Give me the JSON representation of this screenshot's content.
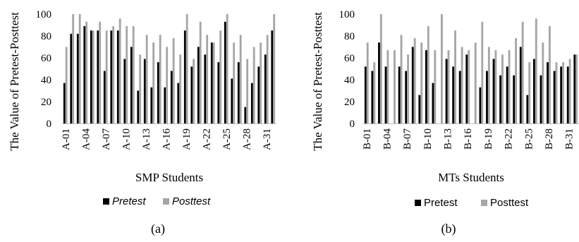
{
  "figure": {
    "panels": [
      "(a)",
      "(b)"
    ]
  },
  "colors": {
    "pretest": "#000000",
    "posttest": "#a6a6a6",
    "axis": "#bfbfbf"
  },
  "chart_data": [
    {
      "type": "bar",
      "title": "",
      "xlabel": "SMP Students",
      "ylabel": "The Value of Pretest-Posttest",
      "ylim": [
        0,
        100
      ],
      "yticks": [
        "0",
        "20",
        "40",
        "60",
        "80",
        "100"
      ],
      "grid": false,
      "legend_position": "bottom",
      "categories": [
        "A-01",
        "A-02",
        "A-03",
        "A-04",
        "A-05",
        "A-06",
        "A-07",
        "A-08",
        "A-09",
        "A-10",
        "A-11",
        "A-12",
        "A-13",
        "A-14",
        "A-15",
        "A-16",
        "A-17",
        "A-18",
        "A-19",
        "A-20",
        "A-21",
        "A-22",
        "A-23",
        "A-24",
        "A-25",
        "A-26",
        "A-27",
        "A-28",
        "A-29",
        "A-30",
        "A-31",
        "A-32"
      ],
      "xtick_labels": [
        "A-01",
        "A-04",
        "A-07",
        "A-10",
        "A-13",
        "A-16",
        "A-19",
        "A-22",
        "A-25",
        "A-28",
        "A-31"
      ],
      "series": [
        {
          "name": "Pretest",
          "values": [
            37,
            82,
            82,
            89,
            85,
            85,
            48,
            85,
            85,
            59,
            70,
            30,
            59,
            33,
            56,
            33,
            48,
            37,
            85,
            52,
            70,
            63,
            74,
            56,
            93,
            41,
            56,
            15,
            37,
            52,
            63,
            85
          ]
        },
        {
          "name": "Posttest",
          "values": [
            70,
            100,
            100,
            93,
            85,
            93,
            85,
            89,
            96,
            89,
            89,
            63,
            81,
            74,
            81,
            70,
            78,
            63,
            100,
            59,
            93,
            81,
            74,
            85,
            100,
            74,
            81,
            59,
            70,
            74,
            81,
            100
          ]
        }
      ]
    },
    {
      "type": "bar",
      "title": "",
      "xlabel": "MTs Students",
      "ylabel": "The Value of Pretest-Posttest",
      "ylim": [
        0,
        100
      ],
      "yticks": [
        "0",
        "20",
        "40",
        "60",
        "80",
        "100"
      ],
      "grid": false,
      "legend_position": "bottom",
      "categories": [
        "B-01",
        "B-02",
        "B-03",
        "B-04",
        "B-05",
        "B-06",
        "B-07",
        "B-08",
        "B-09",
        "B-10",
        "B-11",
        "B-12",
        "B-13",
        "B-14",
        "B-15",
        "B-16",
        "B-17",
        "B-18",
        "B-19",
        "B-20",
        "B-21",
        "B-22",
        "B-23",
        "B-24",
        "B-25",
        "B-26",
        "B-27",
        "B-28",
        "B-29",
        "B-30",
        "B-31",
        "B-32"
      ],
      "xtick_labels": [
        "B-01",
        "B-04",
        "B-07",
        "B-10",
        "B-13",
        "B-16",
        "B-19",
        "B-22",
        "B-25",
        "B-28",
        "B-31"
      ],
      "series": [
        {
          "name": "Pretest",
          "values": [
            52,
            48,
            74,
            52,
            0,
            52,
            48,
            70,
            26,
            67,
            37,
            0,
            59,
            52,
            48,
            63,
            0,
            33,
            48,
            59,
            44,
            52,
            44,
            70,
            26,
            59,
            44,
            56,
            48,
            52,
            52,
            63
          ]
        },
        {
          "name": "Posttest",
          "values": [
            74,
            56,
            100,
            67,
            67,
            81,
            63,
            78,
            74,
            89,
            67,
            100,
            67,
            85,
            70,
            67,
            74,
            93,
            70,
            67,
            63,
            67,
            78,
            93,
            56,
            96,
            74,
            89,
            56,
            56,
            59,
            63
          ]
        }
      ]
    }
  ]
}
